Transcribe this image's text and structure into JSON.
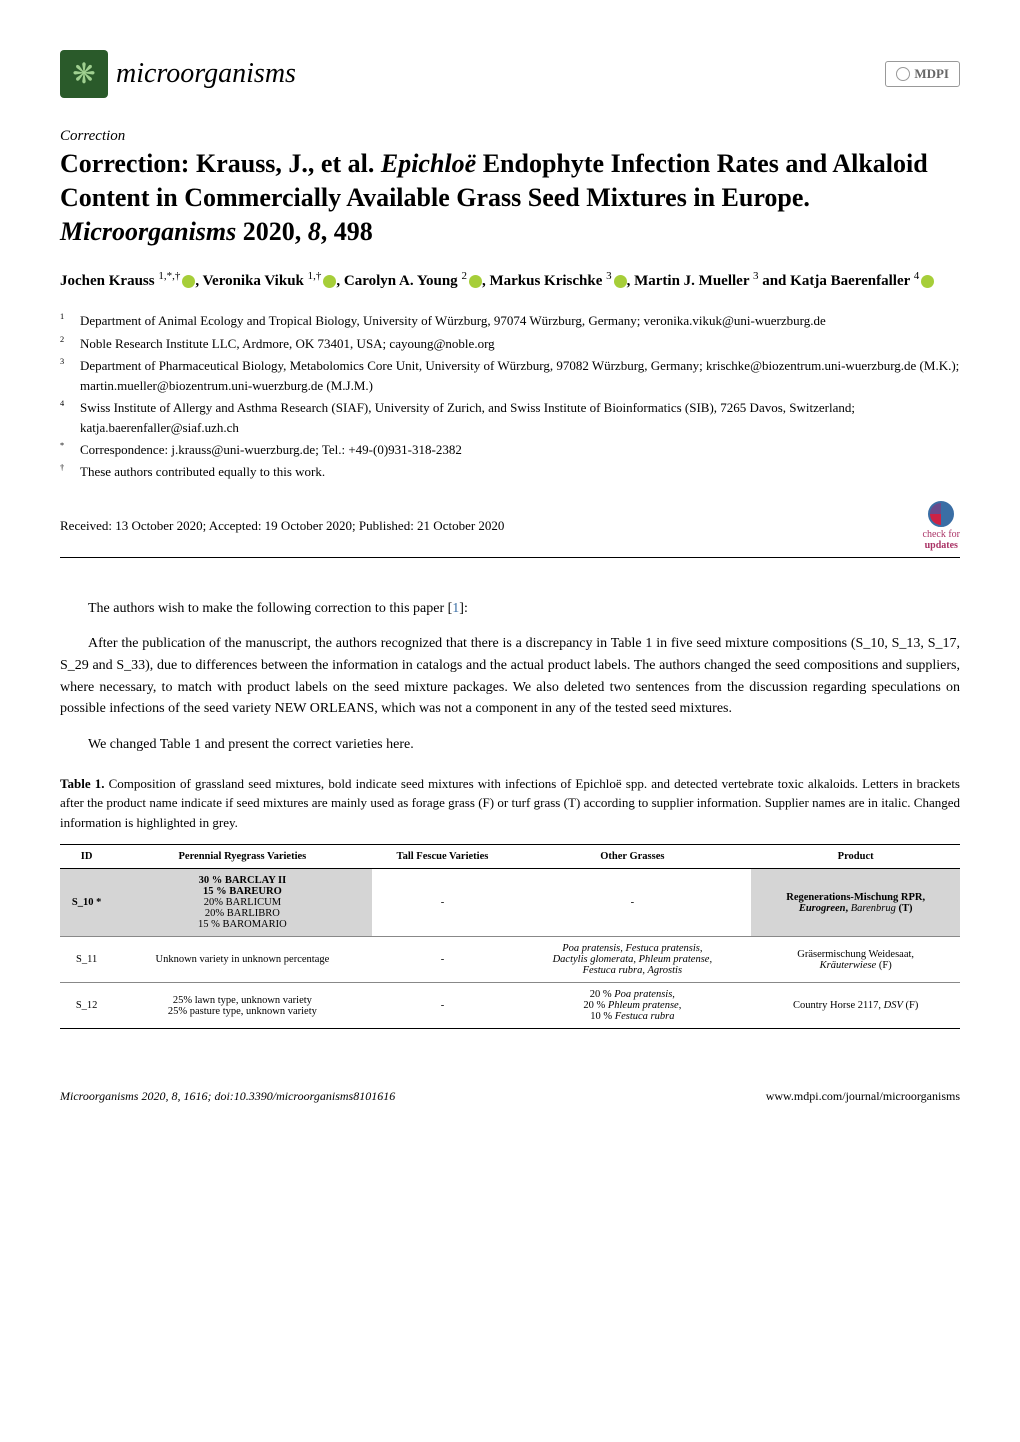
{
  "journal": {
    "name": "microorganisms",
    "logo_glyph": "❋"
  },
  "publisher_logo": "MDPI",
  "category": "Correction",
  "title_parts": {
    "prefix": "Correction: Krauss, J., et al. ",
    "italic1": "Epichloë",
    "mid1": " Endophyte Infection Rates and Alkaloid Content in Commercially Available Grass Seed Mixtures in Europe. ",
    "italic2": "Microorganisms",
    "suffix": " 2020, ",
    "vol": "8",
    "pages": ", 498"
  },
  "authors": [
    {
      "name": "Jochen Krauss",
      "sup": "1,*,†",
      "orcid": true
    },
    {
      "name": "Veronika Vikuk",
      "sup": "1,†",
      "orcid": true
    },
    {
      "name": "Carolyn A. Young",
      "sup": "2",
      "orcid": true
    },
    {
      "name": "Markus Krischke",
      "sup": "3",
      "orcid": true
    },
    {
      "name": "Martin J. Mueller",
      "sup": "3",
      "orcid": false
    },
    {
      "name": "Katja Baerenfaller",
      "sup": "4",
      "orcid": true
    }
  ],
  "affiliations": [
    {
      "num": "1",
      "text": "Department of Animal Ecology and Tropical Biology, University of Würzburg, 97074 Würzburg, Germany; veronika.vikuk@uni-wuerzburg.de"
    },
    {
      "num": "2",
      "text": "Noble Research Institute LLC, Ardmore, OK 73401, USA; cayoung@noble.org"
    },
    {
      "num": "3",
      "text": "Department of Pharmaceutical Biology, Metabolomics Core Unit, University of Würzburg, 97082 Würzburg, Germany; krischke@biozentrum.uni-wuerzburg.de (M.K.); martin.mueller@biozentrum.uni-wuerzburg.de (M.J.M.)"
    },
    {
      "num": "4",
      "text": "Swiss Institute of Allergy and Asthma Research (SIAF), University of Zurich, and Swiss Institute of Bioinformatics (SIB), 7265 Davos, Switzerland; katja.baerenfaller@siaf.uzh.ch"
    },
    {
      "num": "*",
      "text": "Correspondence: j.krauss@uni-wuerzburg.de; Tel.: +49-(0)931-318-2382"
    },
    {
      "num": "†",
      "text": "These authors contributed equally to this work."
    }
  ],
  "received_line": "Received: 13 October 2020; Accepted: 19 October 2020; Published: 21 October 2020",
  "check_updates": {
    "line1": "check for",
    "line2": "updates"
  },
  "para1": "The authors wish to make the following correction to this paper [",
  "ref1": "1",
  "para1_end": "]:",
  "para2": "After the publication of the manuscript, the authors recognized that there is a discrepancy in Table 1 in five seed mixture compositions (S_10, S_13, S_17, S_29 and S_33), due to differences between the information in catalogs and the actual product labels. The authors changed the seed compositions and suppliers, where necessary, to match with product labels on the seed mixture packages. We also deleted two sentences from the discussion regarding speculations on possible infections of the seed variety NEW ORLEANS, which was not a component in any of the tested seed mixtures.",
  "para3": "We changed Table 1 and present the correct varieties here.",
  "table_caption_prefix": "Table 1. ",
  "table_caption": "Composition of grassland seed mixtures, bold indicate seed mixtures with infections of Epichloë spp. and detected vertebrate toxic alkaloids. Letters in brackets after the product name indicate if seed mixtures are mainly used as forage grass (F) or turf grass (T) according to supplier information. Supplier names are in italic. Changed information is highlighted in grey.",
  "table": {
    "columns": [
      "ID",
      "Perennial Ryegrass Varieties",
      "Tall Fescue Varieties",
      "Other Grasses",
      "Product"
    ],
    "rows": [
      {
        "id": "S_10 *",
        "id_grey": true,
        "id_bold": true,
        "col2_html": "<b>30 % BARCLAY II<br>15 % BAREURO</b><br>20% BARLICUM<br>20% BARLIBRO<br>15 % BAROMARIO",
        "col2_grey": true,
        "col3": "-",
        "col4": "-",
        "col5_html": "<b>Regenerations-Mischung RPR,<br><i>Eurogreen</i>,</b> <i>Barenbrug</i> <b>(T)</b>",
        "col5_grey": true
      },
      {
        "id": "S_11",
        "col2_html": "Unknown variety in unknown percentage",
        "col3": "-",
        "col4_html": "<i>Poa pratensis, Festuca pratensis,<br>Dactylis glomerata, Phleum pratense,<br>Festuca rubra, Agrostis</i>",
        "col5_html": "Gräsermischung Weidesaat,<br><i>Kräuterwiese</i> (F)"
      },
      {
        "id": "S_12",
        "col2_html": "25% lawn type, unknown variety<br>25% pasture type, unknown variety",
        "col3": "-",
        "col4_html": "20 % <i>Poa pratensis</i>,<br>20 % <i>Phleum pratense</i>,<br>10 % <i>Festuca rubra</i>",
        "col5_html": "Country Horse 2117, <i>DSV</i> (F)"
      }
    ]
  },
  "footer": {
    "left": "Microorganisms 2020, 8, 1616; doi:10.3390/microorganisms8101616",
    "right": "www.mdpi.com/journal/microorganisms"
  }
}
